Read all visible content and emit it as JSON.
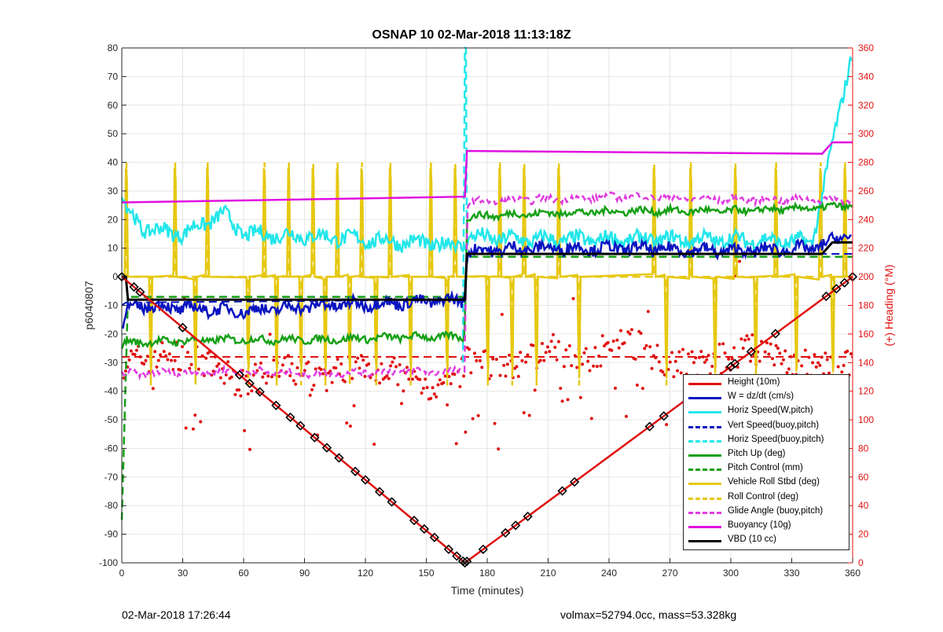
{
  "title": "OSNAP 10 02-Mar-2018 11:13:18Z",
  "footer": {
    "left": "02-Mar-2018 17:26:44",
    "right": "volmax=52794.0cc, mass=53.328kg"
  },
  "colors": {
    "height": "#e01010",
    "w": "#0a14c0",
    "horiz_speed": "#22e6ea",
    "pitch": "#16a016",
    "roll": "#e6c812",
    "glide": "#e03ae0",
    "buoyancy": "#e010e0",
    "vbd": "#000000",
    "heading": "#e01010",
    "axis": "#262626",
    "right_axis": "#e01010"
  },
  "legend": [
    {
      "label": "Height (10m)",
      "color": "#e01010",
      "style": "solid"
    },
    {
      "label": "W = dz/dt (cm/s)",
      "color": "#0a14c0",
      "style": "solid"
    },
    {
      "label": "Horiz Speed(W,pitch)",
      "color": "#22e6ea",
      "style": "solid"
    },
    {
      "label": "Vert Speed(buoy,pitch)",
      "color": "#0a14c0",
      "style": "dashed"
    },
    {
      "label": "Horiz Speed(buoy,pitch)",
      "color": "#22e6ea",
      "style": "dashed"
    },
    {
      "label": "Pitch Up (deg)",
      "color": "#16a016",
      "style": "solid"
    },
    {
      "label": "Pitch Control (mm)",
      "color": "#16a016",
      "style": "dashed"
    },
    {
      "label": "Vehicle Roll Stbd (deg)",
      "color": "#e6c812",
      "style": "solid"
    },
    {
      "label": "Roll Control (deg)",
      "color": "#e6c812",
      "style": "dashed"
    },
    {
      "label": "Glide Angle (buoy,pitch)",
      "color": "#e03ae0",
      "style": "dashed"
    },
    {
      "label": "Buoyancy (10g)",
      "color": "#e010e0",
      "style": "solid"
    },
    {
      "label": "VBD (10 cc)",
      "color": "#000000",
      "style": "solid"
    }
  ],
  "chart_data": {
    "type": "line",
    "title": "OSNAP 10 02-Mar-2018 11:13:18Z",
    "xlabel": "Time (minutes)",
    "ylabel": "p6040807",
    "y2label": "(+) Heading (°M)",
    "xlim": [
      0,
      360
    ],
    "ylim": [
      -100,
      80
    ],
    "y2lim": [
      0,
      360
    ],
    "xticks": [
      "0",
      "30",
      "60",
      "90",
      "120",
      "150",
      "180",
      "210",
      "240",
      "270",
      "300",
      "330",
      "360"
    ],
    "yticks": [
      "80",
      "70",
      "60",
      "50",
      "40",
      "30",
      "20",
      "10",
      "0",
      "-10",
      "-20",
      "-30",
      "-40",
      "-50",
      "-60",
      "-70",
      "-80",
      "-90",
      "-100"
    ],
    "y2ticks": [
      "360",
      "340",
      "320",
      "300",
      "280",
      "260",
      "240",
      "220",
      "200",
      "180",
      "160",
      "140",
      "120",
      "100",
      "80",
      "60",
      "40",
      "20",
      "0"
    ],
    "grid": true,
    "legend_position": "bottom-right",
    "series": [
      {
        "name": "Height (10m)",
        "x": [
          0,
          169,
          360
        ],
        "y": [
          0,
          -100,
          0
        ]
      },
      {
        "name": "W = dz/dt (cm/s)",
        "x": [
          0,
          2,
          10,
          30,
          60,
          100,
          140,
          169,
          170,
          200,
          250,
          300,
          340,
          360
        ],
        "y": [
          -18,
          -12,
          -10,
          -11,
          -12,
          -10,
          -9,
          -8,
          9,
          10,
          10,
          9,
          10,
          15
        ]
      },
      {
        "name": "Horiz Speed(W,pitch)",
        "x": [
          0,
          2,
          10,
          30,
          50,
          60,
          100,
          140,
          169,
          170,
          200,
          250,
          300,
          340,
          360
        ],
        "y": [
          30,
          24,
          17,
          15,
          22,
          15,
          14,
          12,
          11,
          14,
          13,
          13,
          13,
          12,
          80
        ]
      },
      {
        "name": "Vert Speed(buoy,pitch)",
        "x": [
          0,
          2,
          169,
          170,
          360
        ],
        "y": [
          -10,
          -9,
          -8,
          8,
          8
        ]
      },
      {
        "name": "Horiz Speed(buoy,pitch)",
        "x": [
          168,
          169,
          169.5,
          170
        ],
        "y": [
          -30,
          80,
          80,
          10
        ]
      },
      {
        "name": "Pitch Up (deg)",
        "x": [
          0,
          3,
          50,
          100,
          140,
          169,
          170,
          200,
          250,
          300,
          340,
          360
        ],
        "y": [
          -24,
          -23,
          -22,
          -22,
          -21,
          -21,
          21,
          22,
          23,
          23,
          24,
          25
        ]
      },
      {
        "name": "Pitch Control (mm)",
        "x": [
          0,
          3,
          169,
          170,
          360
        ],
        "y": [
          -85,
          -7,
          -7,
          7,
          7
        ]
      },
      {
        "name": "Vehicle Roll Stbd (deg)",
        "x": [
          0,
          360
        ],
        "y": [
          0,
          0
        ]
      },
      {
        "name": "Roll Control (deg)",
        "x": [
          0,
          360
        ],
        "y": [
          0,
          0
        ]
      },
      {
        "name": "Glide Angle (buoy,pitch)",
        "x": [
          0,
          60,
          100,
          140,
          169,
          170,
          200,
          250,
          300,
          340,
          360
        ],
        "y": [
          -34,
          -33,
          -34,
          -33,
          -33,
          26,
          27,
          28,
          27,
          27,
          27
        ]
      },
      {
        "name": "Buoyancy (10g)",
        "x": [
          0,
          169,
          170,
          345,
          350,
          360
        ],
        "y": [
          26,
          28,
          44,
          43,
          47,
          47
        ]
      },
      {
        "name": "VBD (10 cc)",
        "x": [
          0,
          2,
          3,
          169,
          170,
          345,
          350,
          360
        ],
        "y": [
          0,
          0,
          -8,
          -8,
          8,
          8,
          12,
          12
        ]
      },
      {
        "name": "Heading",
        "x": [
          0,
          20,
          40,
          60,
          80,
          100,
          120,
          140,
          160,
          170,
          190,
          210,
          230,
          250,
          270,
          290,
          310,
          330,
          350,
          360
        ],
        "y2": [
          140,
          145,
          140,
          125,
          135,
          130,
          140,
          130,
          120,
          140,
          135,
          150,
          145,
          155,
          140,
          140,
          150,
          140,
          135,
          140
        ]
      }
    ]
  }
}
